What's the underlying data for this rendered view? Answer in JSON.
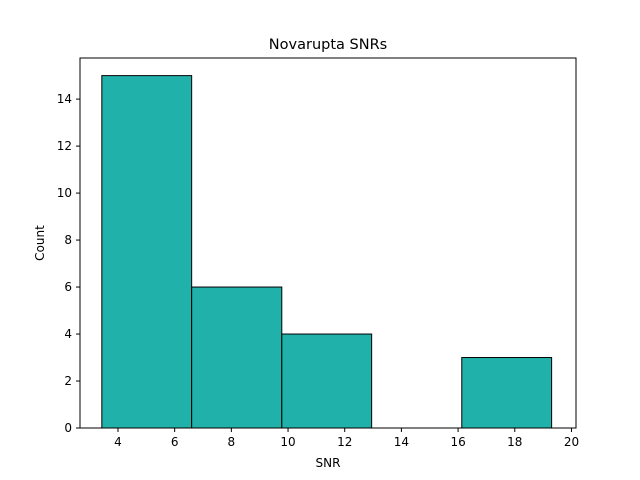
{
  "chart_data": {
    "type": "bar",
    "title": "Novarupta SNRs",
    "xlabel": "SNR",
    "ylabel": "Count",
    "xlim": [
      2.66,
      20.16
    ],
    "ylim": [
      0,
      15.75
    ],
    "xticks": [
      4,
      6,
      8,
      10,
      12,
      14,
      16,
      18,
      20
    ],
    "yticks": [
      0,
      2,
      4,
      6,
      8,
      10,
      12,
      14
    ],
    "bins": [
      {
        "x0": 3.43,
        "x1": 6.6,
        "count": 15
      },
      {
        "x0": 6.6,
        "x1": 9.78,
        "count": 6
      },
      {
        "x0": 9.78,
        "x1": 12.95,
        "count": 4
      },
      {
        "x0": 12.95,
        "x1": 16.13,
        "count": 0
      },
      {
        "x0": 16.13,
        "x1": 19.3,
        "count": 3
      }
    ],
    "bar_color": "#20b2aa",
    "edge_color": "#000000",
    "grid": false,
    "legend": "none"
  }
}
